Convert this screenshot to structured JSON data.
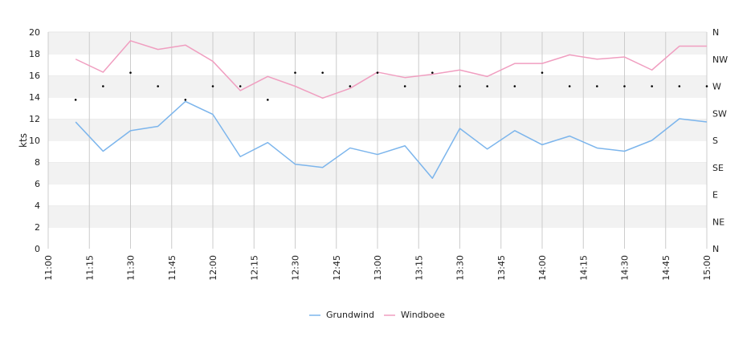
{
  "chart_data": {
    "type": "line",
    "ylabel": "kts",
    "ylim": [
      0,
      20
    ],
    "yticks": [
      "0",
      "2",
      "4",
      "6",
      "8",
      "10",
      "12",
      "14",
      "16",
      "18",
      "20"
    ],
    "xlim": [
      "11:00",
      "15:00"
    ],
    "xticks": [
      "11:00",
      "11:15",
      "11:30",
      "11:45",
      "12:00",
      "12:15",
      "12:30",
      "12:45",
      "13:00",
      "13:15",
      "13:30",
      "13:45",
      "14:00",
      "14:15",
      "14:30",
      "14:45",
      "15:00"
    ],
    "y2ticks": [
      "N",
      "NE",
      "E",
      "SE",
      "S",
      "SW",
      "W",
      "NW",
      "N"
    ],
    "grid": true,
    "legend_position": "bottom",
    "x": [
      "11:10",
      "11:20",
      "11:30",
      "11:40",
      "11:50",
      "12:00",
      "12:10",
      "12:20",
      "12:30",
      "12:40",
      "12:50",
      "13:00",
      "13:10",
      "13:20",
      "13:30",
      "13:40",
      "13:50",
      "14:00",
      "14:10",
      "14:20",
      "14:30",
      "14:40",
      "14:50",
      "15:00"
    ],
    "series": [
      {
        "name": "Grundwind",
        "color": "#7cb5ec",
        "values": [
          11.7,
          9.0,
          10.9,
          11.3,
          13.6,
          12.4,
          8.5,
          9.8,
          7.8,
          7.5,
          9.3,
          8.7,
          9.5,
          6.5,
          11.1,
          9.2,
          10.9,
          9.6,
          10.4,
          9.3,
          9.0,
          10.0,
          12.0,
          11.7
        ]
      },
      {
        "name": "Windboee",
        "color": "#f09ec0",
        "values": [
          17.5,
          16.3,
          19.2,
          18.4,
          18.8,
          17.3,
          14.6,
          15.9,
          15.0,
          13.9,
          14.8,
          16.3,
          15.8,
          16.1,
          16.5,
          15.9,
          17.1,
          17.1,
          17.9,
          17.5,
          17.7,
          16.5,
          18.7,
          18.7
        ]
      }
    ],
    "direction_degrees": [
      247.5,
      270,
      292.5,
      270,
      247.5,
      270,
      270,
      247.5,
      292.5,
      292.5,
      270,
      292.5,
      270,
      292.5,
      270,
      270,
      270,
      292.5,
      270,
      270,
      270,
      270,
      270,
      270
    ]
  }
}
